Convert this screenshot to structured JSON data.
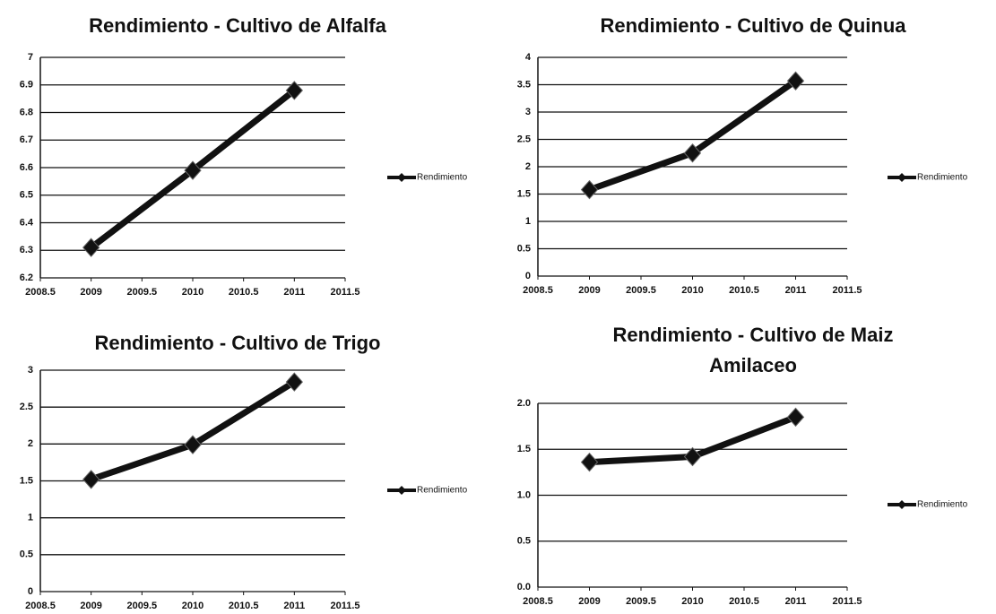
{
  "chart_data": [
    {
      "type": "line",
      "title": "Rendimiento - Cultivo de Alfalfa",
      "x": [
        2009,
        2010,
        2011
      ],
      "series": [
        {
          "name": "Rendimiento",
          "color": "#111111",
          "values": [
            6.31,
            6.59,
            6.88
          ]
        }
      ],
      "xlim": [
        2008.5,
        2011.5
      ],
      "xticks": [
        2008.5,
        2009,
        2009.5,
        2010,
        2010.5,
        2011,
        2011.5
      ],
      "ylim": [
        6.2,
        7
      ],
      "yticks": [
        6.2,
        6.3,
        6.4,
        6.5,
        6.6,
        6.7,
        6.8,
        6.9,
        7
      ],
      "grid": true,
      "legend": "right"
    },
    {
      "type": "line",
      "title": "Rendimiento - Cultivo de Quinua",
      "x": [
        2009,
        2010,
        2011
      ],
      "series": [
        {
          "name": "Rendimiento",
          "color": "#111111",
          "values": [
            1.58,
            2.25,
            3.57
          ]
        }
      ],
      "xlim": [
        2008.5,
        2011.5
      ],
      "xticks": [
        2008.5,
        2009,
        2009.5,
        2010,
        2010.5,
        2011,
        2011.5
      ],
      "ylim": [
        0,
        4
      ],
      "yticks": [
        0,
        0.5,
        1,
        1.5,
        2,
        2.5,
        3,
        3.5,
        4
      ],
      "grid": true,
      "legend": "right"
    },
    {
      "type": "line",
      "title": "Rendimiento - Cultivo de Trigo",
      "x": [
        2009,
        2010,
        2011
      ],
      "series": [
        {
          "name": "Rendimiento",
          "color": "#111111",
          "values": [
            1.52,
            1.99,
            2.84
          ]
        }
      ],
      "xlim": [
        2008.5,
        2011.5
      ],
      "xticks": [
        2008.5,
        2009,
        2009.5,
        2010,
        2010.5,
        2011,
        2011.5
      ],
      "ylim": [
        0,
        3
      ],
      "yticks": [
        0,
        0.5,
        1,
        1.5,
        2,
        2.5,
        3
      ],
      "grid": true,
      "legend": "right"
    },
    {
      "type": "line",
      "title": "Rendimiento - Cultivo de Maiz Amilaceo",
      "x": [
        2009,
        2010,
        2011
      ],
      "series": [
        {
          "name": "Rendimiento",
          "color": "#111111",
          "values": [
            1.36,
            1.42,
            1.85
          ]
        }
      ],
      "xlim": [
        2008.5,
        2011.5
      ],
      "xticks": [
        2008.5,
        2009,
        2009.5,
        2010,
        2010.5,
        2011,
        2011.5
      ],
      "ylim": [
        0,
        2
      ],
      "yticks": [
        {
          "value": 0,
          "label": "0.0"
        },
        0.5,
        {
          "value": 1,
          "label": "1.0"
        },
        1.5,
        {
          "value": 2,
          "label": "2.0"
        }
      ],
      "grid": true,
      "legend": "right"
    }
  ]
}
